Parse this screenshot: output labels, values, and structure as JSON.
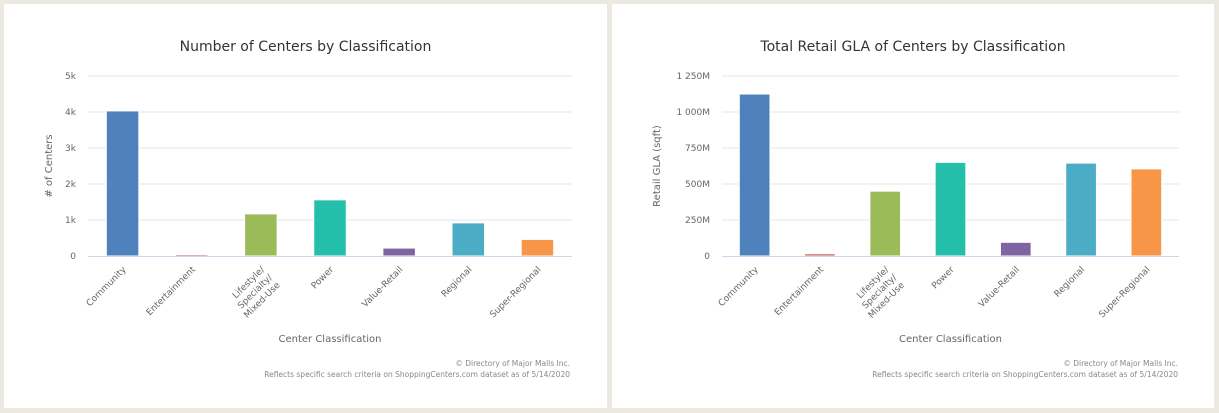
{
  "chart_data": [
    {
      "type": "bar",
      "title": "Number of Centers by Classification",
      "xlabel": "Center Classification",
      "ylabel": "# of Centers",
      "categories": [
        "Community",
        "Entertainment",
        "Lifestyle/ Specialty/ Mixed-Use",
        "Power",
        "Value-Retail",
        "Regional",
        "Super-Regional"
      ],
      "values": [
        4030,
        40,
        1170,
        1560,
        220,
        920,
        460
      ],
      "colors": [
        "#4f81bd",
        "#c0504d",
        "#9bbb59",
        "#23bfaa",
        "#8064a2",
        "#4bacc6",
        "#f79646"
      ],
      "ylim": [
        0,
        5000
      ],
      "yticks": [
        0,
        1000,
        2000,
        3000,
        4000,
        5000
      ],
      "ytick_labels": [
        "0",
        "1k",
        "2k",
        "3k",
        "4k",
        "5k"
      ],
      "grid": true,
      "legend": "none",
      "credits": [
        "© Directory of Major Malls Inc.",
        "Reflects specific search criteria on ShoppingCenters.com dataset as of 5/14/2020"
      ]
    },
    {
      "type": "bar",
      "title": "Total Retail GLA of Centers by Classification",
      "xlabel": "Center Classification",
      "ylabel": "Retail GLA (sqft)",
      "categories": [
        "Community",
        "Entertainment",
        "Lifestyle/ Specialty/ Mixed-Use",
        "Power",
        "Value-Retail",
        "Regional",
        "Super-Regional"
      ],
      "values": [
        1125000000,
        15000000,
        450000000,
        650000000,
        95000000,
        645000000,
        605000000
      ],
      "colors": [
        "#4f81bd",
        "#c0504d",
        "#9bbb59",
        "#23bfaa",
        "#8064a2",
        "#4bacc6",
        "#f79646"
      ],
      "ylim": [
        0,
        1250000000
      ],
      "yticks": [
        0,
        250000000,
        500000000,
        750000000,
        1000000000,
        1250000000
      ],
      "ytick_labels": [
        "0",
        "250M",
        "500M",
        "750M",
        "1 000M",
        "1 250M"
      ],
      "grid": true,
      "legend": "none",
      "credits": [
        "© Directory of Major Malls Inc.",
        "Reflects specific search criteria on ShoppingCenters.com dataset as of 5/14/2020"
      ]
    }
  ]
}
